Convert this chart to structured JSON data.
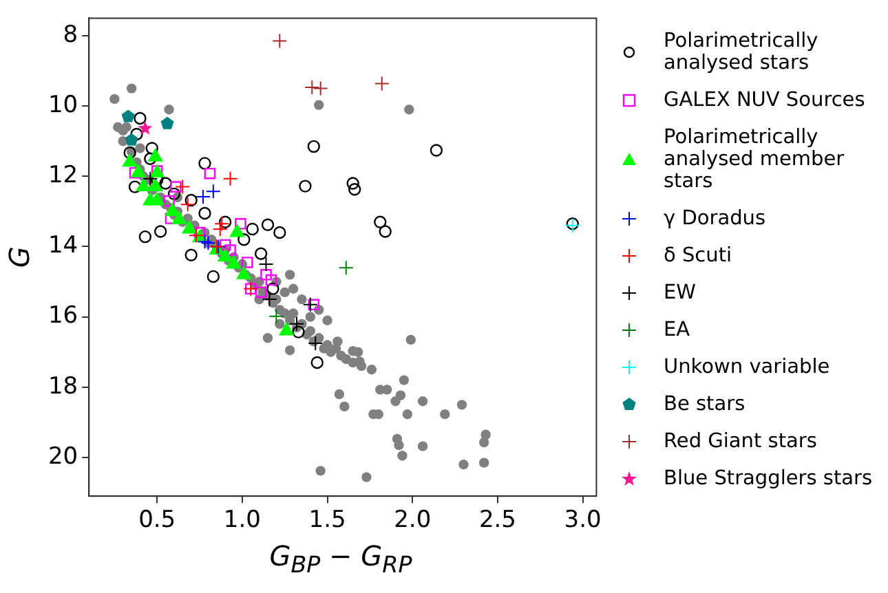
{
  "chart_data": {
    "type": "scatter",
    "xlabel": "G$_{BP}$ − G$_{RP}$",
    "ylabel": "G",
    "xlim": [
      0.1,
      3.08
    ],
    "ylim": [
      21.1,
      7.5
    ],
    "xticks": [
      0.5,
      {
        "value": 1,
        "label": "1.0"
      },
      1.5,
      {
        "value": 2,
        "label": "2.0"
      },
      2.5,
      {
        "value": 3,
        "label": "3.0"
      }
    ],
    "yticks": [
      8,
      10,
      12,
      14,
      16,
      18,
      20
    ],
    "grid": false,
    "legend": "right",
    "series": [
      {
        "color": "#808080",
        "marker": "circle",
        "x": [
          0.25,
          0.35,
          0.57,
          1.45,
          1.98,
          0.3,
          0.32,
          0.3,
          0.35,
          0.38,
          0.4,
          0.42,
          0.45,
          0.47,
          0.5,
          0.52,
          0.55,
          0.58,
          0.6,
          0.62,
          0.65,
          0.68,
          0.72,
          0.78,
          0.8,
          0.82,
          0.85,
          0.88,
          0.9,
          0.92,
          0.95,
          0.98,
          1.0,
          1.02,
          1.05,
          1.08,
          1.1,
          1.12,
          1.15,
          1.18,
          1.2,
          1.22,
          1.25,
          1.28,
          1.3,
          1.32,
          1.35,
          1.38,
          1.4,
          1.42,
          1.45,
          1.48,
          1.5,
          1.52,
          1.55,
          1.58,
          1.65,
          1.7,
          1.25,
          1.35,
          1.45,
          1.5,
          1.3,
          1.2,
          1.4,
          1.1,
          1.22,
          1.15,
          0.62,
          0.4,
          0.27,
          1.28,
          1.99,
          1.95,
          1.57,
          1.6,
          1.77,
          1.8,
          1.81,
          1.85,
          1.9,
          1.93,
          2.06,
          1.97,
          2.19,
          2.29,
          1.91,
          1.92,
          1.94,
          2.06,
          2.43,
          2.42,
          2.3,
          2.42,
          1.46,
          1.73,
          1.76,
          1.69,
          1.65,
          1.68,
          1.61,
          1.56,
          1.28
        ],
        "values": [
          9.8,
          9.5,
          10.1,
          9.97,
          10.1,
          10.7,
          10.6,
          11.0,
          11.3,
          11.6,
          11.8,
          12.0,
          12.1,
          12.4,
          12.3,
          12.6,
          12.8,
          12.9,
          13.1,
          13.0,
          13.3,
          13.2,
          13.4,
          13.6,
          13.9,
          13.8,
          14.0,
          14.2,
          14.1,
          14.4,
          14.3,
          14.6,
          14.5,
          14.8,
          14.9,
          15.1,
          15.0,
          15.3,
          15.4,
          15.6,
          15.5,
          15.8,
          15.9,
          16.1,
          15.9,
          16.3,
          16.2,
          16.5,
          16.4,
          16.7,
          16.6,
          16.9,
          16.8,
          17.0,
          16.9,
          17.1,
          17.3,
          17.4,
          15.3,
          15.5,
          15.8,
          16.1,
          15.2,
          15.0,
          16.0,
          15.5,
          16.2,
          16.6,
          12.6,
          11.2,
          10.6,
          14.8,
          16.65,
          17.8,
          18.2,
          18.55,
          18.77,
          18.77,
          18.07,
          18.07,
          18.4,
          18.23,
          18.4,
          18.77,
          18.77,
          18.5,
          19.47,
          19.65,
          19.95,
          19.68,
          19.35,
          19.57,
          20.2,
          20.15,
          20.38,
          20.56,
          17.5,
          17.27,
          16.97,
          17.0,
          17.2,
          16.7,
          16.95
        ]
      },
      {
        "name": "Polarimetrically analysed stars",
        "color": "#000000",
        "marker": "circle",
        "x": [
          0.4,
          0.38,
          0.34,
          0.47,
          0.46,
          0.37,
          0.78,
          1.42,
          2.14,
          1.37,
          1.65,
          1.66,
          0.7,
          0.78,
          1.15,
          1.22,
          1.81,
          1.84,
          0.43,
          0.52,
          1.06,
          1.01,
          0.7,
          1.11,
          2.94,
          0.83,
          1.18,
          1.33,
          1.44,
          0.5,
          0.55,
          0.6,
          0.9
        ],
        "values": [
          10.35,
          10.8,
          11.33,
          11.2,
          11.5,
          12.3,
          11.63,
          11.15,
          11.26,
          12.28,
          12.2,
          12.37,
          12.68,
          13.05,
          13.38,
          13.6,
          13.3,
          13.57,
          13.72,
          13.57,
          13.5,
          13.8,
          14.24,
          14.2,
          13.35,
          14.85,
          15.2,
          16.43,
          17.3,
          12.1,
          12.2,
          12.5,
          13.3
        ]
      },
      {
        "name": "GALEX NUV Sources",
        "color": "#ff00ff",
        "marker": "square",
        "x": [
          0.37,
          0.5,
          0.81,
          0.61,
          0.57,
          0.58,
          0.99,
          0.75,
          0.9,
          0.93,
          1.03,
          1.05,
          1.11,
          1.14,
          1.17,
          1.42
        ],
        "values": [
          11.9,
          11.85,
          11.92,
          12.3,
          12.7,
          13.2,
          13.35,
          13.6,
          13.95,
          14.1,
          14.45,
          15.2,
          15.3,
          14.8,
          14.95,
          15.65
        ]
      },
      {
        "name": "Polarimetrically analysed member stars",
        "color": "#00ff00",
        "marker": "triangle",
        "x": [
          0.34,
          0.49,
          0.39,
          0.5,
          0.42,
          0.49,
          0.46,
          0.5,
          0.59,
          0.63,
          0.69,
          0.97,
          0.85,
          0.95,
          1.01,
          1.26,
          0.75,
          0.9
        ],
        "values": [
          11.6,
          11.45,
          11.9,
          11.9,
          12.3,
          12.3,
          12.7,
          12.7,
          13.0,
          13.23,
          13.5,
          13.6,
          14.1,
          14.5,
          14.8,
          16.4,
          13.75,
          14.3
        ]
      },
      {
        "name": "γ Doradus",
        "color": "#0000ff",
        "marker": "cross",
        "x": [
          0.77,
          0.83,
          0.78,
          0.86,
          0.8
        ],
        "values": [
          12.58,
          12.43,
          13.86,
          14.0,
          13.9
        ]
      },
      {
        "name": "δ Scuti",
        "color": "#ff0000",
        "marker": "cross",
        "x": [
          0.65,
          0.93,
          0.68,
          0.88,
          0.87,
          0.73,
          0.85,
          1.05
        ],
        "values": [
          12.3,
          12.07,
          12.8,
          13.35,
          13.5,
          13.68,
          14.0,
          15.2
        ]
      },
      {
        "name": "EW",
        "color": "#000000",
        "marker": "cross",
        "x": [
          0.46,
          1.14,
          1.16,
          1.32,
          1.43,
          1.4
        ],
        "values": [
          12.07,
          14.5,
          15.5,
          16.2,
          16.75,
          15.65
        ]
      },
      {
        "name": "EA",
        "color": "#008000",
        "marker": "cross",
        "x": [
          1.61,
          1.2
        ],
        "values": [
          14.6,
          15.98
        ]
      },
      {
        "name": "Unkown variable",
        "color": "#00ffff",
        "marker": "cross",
        "x": [
          2.94
        ],
        "values": [
          13.4
        ]
      },
      {
        "name": "Be stars",
        "color": "#008080",
        "x": [
          0.33,
          0.35,
          0.56
        ],
        "values": [
          10.3,
          10.97,
          10.5
        ]
      },
      {
        "name": "Red Giant stars",
        "color": "#a52a2a",
        "marker": "cross",
        "x": [
          1.22,
          1.41,
          1.46,
          1.82
        ],
        "values": [
          8.15,
          9.47,
          9.5,
          9.36
        ]
      },
      {
        "name": "Blue Stragglers stars",
        "color": "#ff1493",
        "marker": "star",
        "x": [
          0.43
        ],
        "values": [
          10.64
        ]
      }
    ]
  }
}
